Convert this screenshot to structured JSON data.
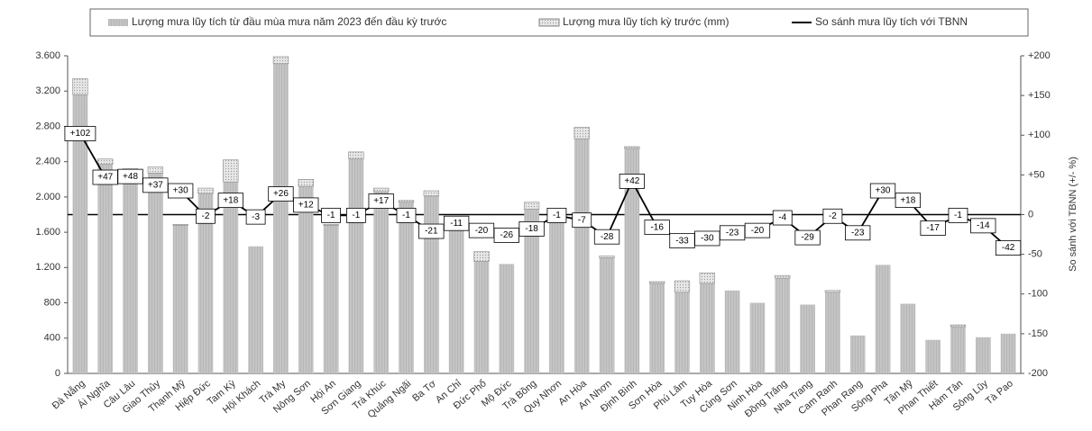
{
  "chart_data": {
    "type": "bar",
    "stacked": true,
    "categories": [
      "Đà Nẵng",
      "Ái Nghĩa",
      "Câu Lâu",
      "Giao Thủy",
      "Thạnh Mỹ",
      "Hiệp Đức",
      "Tam Kỳ",
      "Hội Khách",
      "Trà My",
      "Nông Sơn",
      "Hội An",
      "Sơn Giang",
      "Trà Khúc",
      "Quảng Ngãi",
      "Ba Tơ",
      "An Chỉ",
      "Đức Phổ",
      "Mộ Đức",
      "Trà Bồng",
      "Quy Nhơn",
      "An Hòa",
      "An Nhơn",
      "Định Bình",
      "Sơn Hòa",
      "Phú Lâm",
      "Tuy Hòa",
      "Củng Sơn",
      "Ninh Hòa",
      "Đồng Trăng",
      "Nha Trang",
      "Cam Ranh",
      "Phan Rang",
      "Sông Pha",
      "Tân Mỹ",
      "Phan Thiết",
      "Hàm Tân",
      "Sông Lũy",
      "Tà Pao"
    ],
    "series": [
      {
        "name": "Lượng mưa lũy tích từ đầu mùa mưa năm 2023 đến đầu kỳ trước",
        "color": "#c4c4c4",
        "values": [
          3160,
          2370,
          2280,
          2270,
          1680,
          2040,
          2170,
          1440,
          3510,
          2120,
          1680,
          2430,
          2060,
          1940,
          2010,
          1690,
          1270,
          1240,
          1860,
          1800,
          2660,
          1310,
          2550,
          1020,
          920,
          1020,
          940,
          800,
          1080,
          780,
          920,
          430,
          1230,
          790,
          380,
          530,
          410,
          450
        ]
      },
      {
        "name": "Lượng mưa lũy tích kỳ trước (mm)",
        "color": "#e6e6e6",
        "values": [
          180,
          60,
          40,
          70,
          10,
          60,
          250,
          0,
          80,
          80,
          10,
          80,
          40,
          20,
          60,
          0,
          110,
          0,
          80,
          40,
          130,
          20,
          20,
          20,
          130,
          120,
          0,
          0,
          30,
          0,
          20,
          0,
          0,
          0,
          0,
          20,
          0,
          0
        ]
      },
      {
        "name": "So sánh mưa lũy tích với TBNN",
        "color": "#000000",
        "type": "line",
        "axis": "y2",
        "values": [
          102,
          47,
          48,
          37,
          30,
          -2,
          18,
          -3,
          26,
          12,
          -1,
          -1,
          17,
          -1,
          -21,
          -11,
          -20,
          -26,
          -18,
          -1,
          -7,
          -28,
          42,
          -16,
          -33,
          -30,
          -23,
          -20,
          -4,
          -29,
          -2,
          -23,
          30,
          18,
          -17,
          -1,
          -14,
          -42
        ],
        "value_labels": [
          "+102",
          "+47",
          "+48",
          "+37",
          "+30",
          "-2",
          "+18",
          "-3",
          "+26",
          "+12",
          "-1",
          "-1",
          "+17",
          "-1",
          "-21",
          "-11",
          "-20",
          "-26",
          "-18",
          "-1",
          "-7",
          "-28",
          "+42",
          "-16",
          "-33",
          "-30",
          "-23",
          "-20",
          "-4",
          "-29",
          "-2",
          "-23",
          "+30",
          "+18",
          "-17",
          "-1",
          "-14",
          "-42"
        ]
      }
    ],
    "y2label": "So sánh với TBNN (+/- %)",
    "ylim": [
      0,
      3600
    ],
    "yticks": [
      0,
      400,
      800,
      {
        "value": 1200,
        "label": "1.200"
      },
      {
        "value": 1600,
        "label": "1.600"
      },
      {
        "value": 2000,
        "label": "2.000"
      },
      {
        "value": 2400,
        "label": "2.400"
      },
      {
        "value": 2800,
        "label": "2.800"
      },
      {
        "value": 3200,
        "label": "3.200"
      },
      {
        "value": 3600,
        "label": "3.600"
      }
    ],
    "y2lim": [
      -200,
      200
    ],
    "y2ticks": [
      -200,
      -150,
      -100,
      -50,
      0,
      {
        "value": 50,
        "label": "+50"
      },
      {
        "value": 100,
        "label": "+100"
      },
      {
        "value": 150,
        "label": "+150"
      },
      {
        "value": 200,
        "label": "+200"
      }
    ],
    "legend": "top"
  }
}
